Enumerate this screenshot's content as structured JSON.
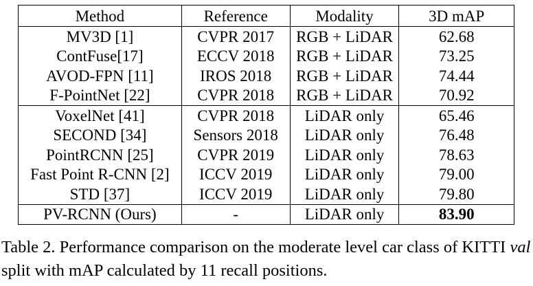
{
  "table": {
    "headers": [
      "Method",
      "Reference",
      "Modality",
      "3D mAP"
    ],
    "groups": [
      {
        "rows": [
          {
            "method": "MV3D [1]",
            "reference": "CVPR 2017",
            "modality": "RGB + LiDAR",
            "map": "62.68"
          },
          {
            "method": "ContFuse[17]",
            "reference": "ECCV 2018",
            "modality": "RGB + LiDAR",
            "map": "73.25"
          },
          {
            "method": "AVOD-FPN [11]",
            "reference": "IROS 2018",
            "modality": "RGB + LiDAR",
            "map": "74.44"
          },
          {
            "method": "F-PointNet [22]",
            "reference": "CVPR 2018",
            "modality": "RGB + LiDAR",
            "map": "70.92"
          }
        ]
      },
      {
        "rows": [
          {
            "method": "VoxelNet [41]",
            "reference": "CVPR 2018",
            "modality": "LiDAR only",
            "map": "65.46"
          },
          {
            "method": "SECOND [34]",
            "reference": "Sensors 2018",
            "modality": "LiDAR only",
            "map": "76.48"
          },
          {
            "method": "PointRCNN [25]",
            "reference": "CVPR 2019",
            "modality": "LiDAR only",
            "map": "78.63"
          },
          {
            "method": "Fast Point R-CNN [2]",
            "reference": "ICCV 2019",
            "modality": "LiDAR only",
            "map": "79.00"
          },
          {
            "method": "STD [37]",
            "reference": "ICCV 2019",
            "modality": "LiDAR only",
            "map": "79.80"
          }
        ]
      },
      {
        "rows": [
          {
            "method": "PV-RCNN (Ours)",
            "reference": "-",
            "modality": "LiDAR only",
            "map": "83.90"
          }
        ]
      }
    ]
  },
  "caption": {
    "prefix": "Table 2. Performance comparison on the moderate level car class of KITTI ",
    "italic": "val",
    "suffix": " split with mAP calculated by 11 recall positions."
  }
}
